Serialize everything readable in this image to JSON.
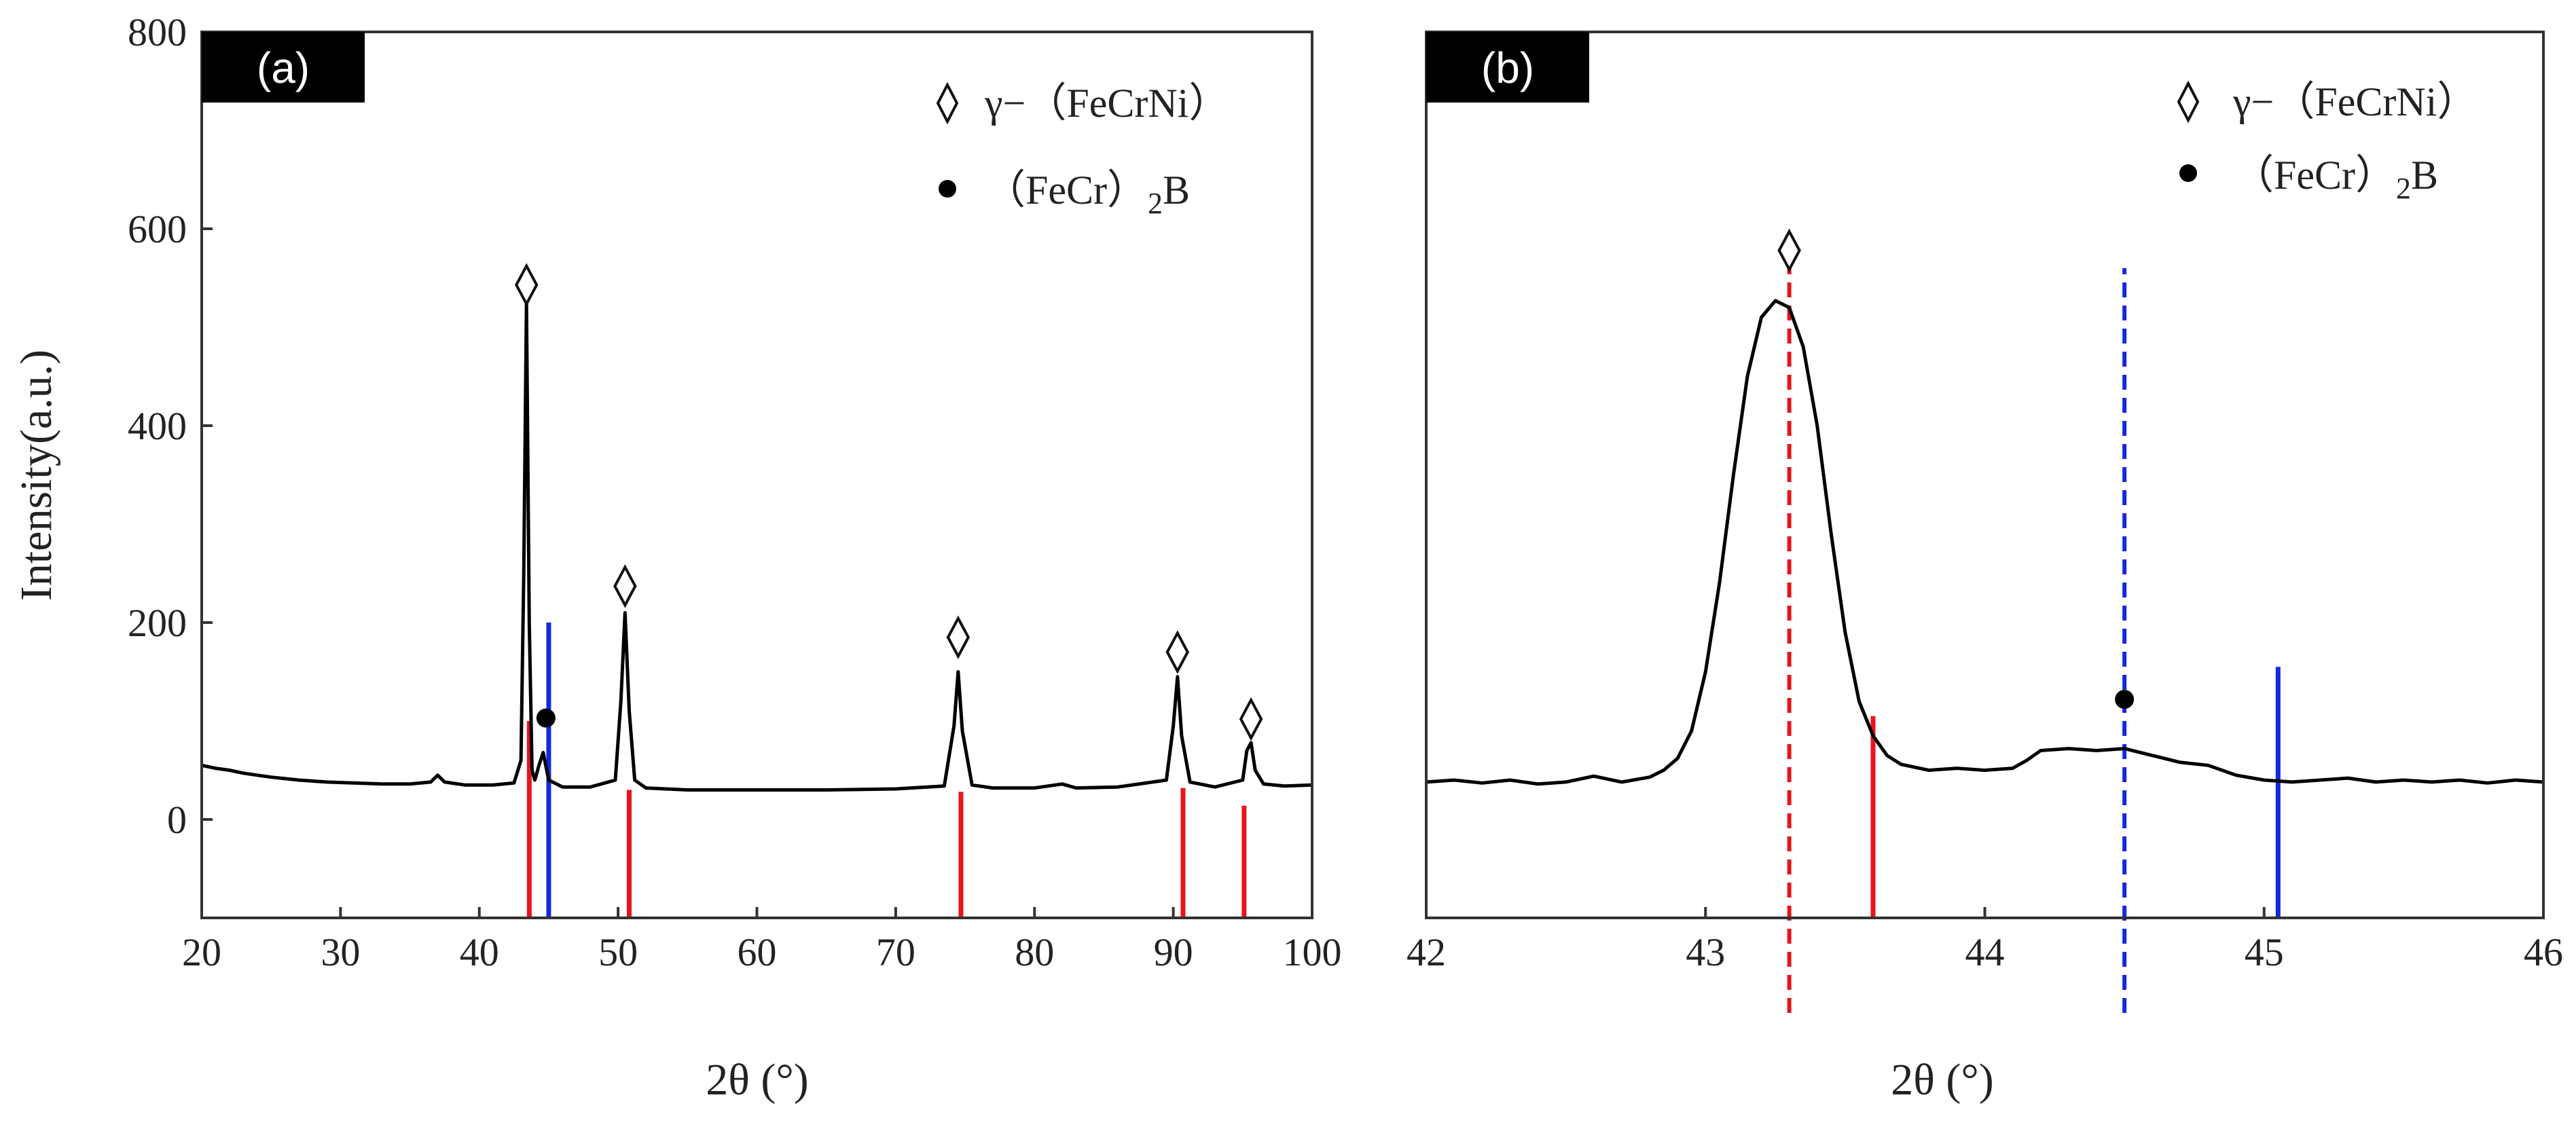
{
  "chart_data": [
    {
      "type": "line",
      "panel_label": "(a)",
      "xlabel": "2θ (°)",
      "ylabel": "Intensity(a.u.)",
      "xlim": [
        20,
        100
      ],
      "ylim": [
        -100,
        800
      ],
      "xticks": [
        20,
        30,
        40,
        50,
        60,
        70,
        80,
        90,
        100
      ],
      "yticks": [
        0,
        200,
        400,
        600,
        800
      ],
      "legend": [
        {
          "marker": "diamond",
          "label": "γ−（FeCrNi）",
          "sub": ""
        },
        {
          "marker": "dot",
          "label": "（FeCr）",
          "sub": "2",
          "suffix": "B"
        }
      ],
      "series": [
        {
          "name": "XRD pattern",
          "color": "#000000",
          "x": [
            20,
            21,
            22,
            23,
            24,
            25,
            27,
            29,
            31,
            33,
            35,
            36.5,
            37,
            37.5,
            39,
            41,
            42.5,
            43.0,
            43.2,
            43.4,
            43.6,
            43.8,
            44.0,
            44.3,
            44.6,
            45.0,
            46,
            48,
            49.8,
            50.2,
            50.5,
            50.8,
            51.2,
            52,
            55,
            60,
            65,
            70,
            73.5,
            74.2,
            74.5,
            74.8,
            75.5,
            77,
            80,
            82,
            83,
            86,
            89.5,
            90.0,
            90.3,
            90.6,
            91.2,
            93,
            95.0,
            95.3,
            95.6,
            95.9,
            96.5,
            98,
            100
          ],
          "y": [
            55,
            52,
            50,
            47,
            45,
            43,
            40,
            38,
            37,
            36,
            36,
            38,
            45,
            38,
            35,
            35,
            37,
            60,
            250,
            525,
            200,
            50,
            40,
            55,
            68,
            40,
            33,
            33,
            40,
            120,
            210,
            110,
            40,
            32,
            30,
            30,
            30,
            31,
            34,
            95,
            150,
            90,
            35,
            32,
            32,
            36,
            32,
            33,
            40,
            95,
            145,
            85,
            38,
            33,
            40,
            70,
            78,
            50,
            36,
            34,
            35
          ]
        }
      ],
      "peak_markers": [
        {
          "x": 43.4,
          "y": 543,
          "marker": "diamond"
        },
        {
          "x": 44.8,
          "y": 103,
          "marker": "dot"
        },
        {
          "x": 50.5,
          "y": 237,
          "marker": "diamond"
        },
        {
          "x": 74.5,
          "y": 185,
          "marker": "diamond"
        },
        {
          "x": 90.3,
          "y": 170,
          "marker": "diamond"
        },
        {
          "x": 95.6,
          "y": 102,
          "marker": "diamond"
        }
      ],
      "reference_lines": [
        {
          "x": 43.6,
          "y_top": 100,
          "color": "#e8141e",
          "style": "solid"
        },
        {
          "x": 50.8,
          "y_top": 30,
          "color": "#e8141e",
          "style": "solid"
        },
        {
          "x": 74.7,
          "y_top": 28,
          "color": "#e8141e",
          "style": "solid"
        },
        {
          "x": 90.7,
          "y_top": 32,
          "color": "#e8141e",
          "style": "solid"
        },
        {
          "x": 95.1,
          "y_top": 14,
          "color": "#e8141e",
          "style": "solid"
        },
        {
          "x": 45.0,
          "y_top": 200,
          "color": "#1428e0",
          "style": "solid"
        }
      ]
    },
    {
      "type": "line",
      "panel_label": "(b)",
      "xlabel": "2θ (°)",
      "ylabel": "",
      "xlim": [
        42,
        46
      ],
      "ylim": [
        -100,
        800
      ],
      "xticks": [
        42,
        43,
        44,
        45,
        46
      ],
      "yticks": [],
      "legend": [
        {
          "marker": "diamond",
          "label": "γ−（FeCrNi）",
          "sub": ""
        },
        {
          "marker": "dot",
          "label": "（FeCr）",
          "sub": "2",
          "suffix": "B"
        }
      ],
      "series": [
        {
          "name": "XRD pattern (zoom)",
          "color": "#000000",
          "x": [
            42.0,
            42.1,
            42.2,
            42.3,
            42.4,
            42.5,
            42.6,
            42.7,
            42.8,
            42.85,
            42.9,
            42.95,
            43.0,
            43.05,
            43.1,
            43.15,
            43.2,
            43.25,
            43.3,
            43.35,
            43.4,
            43.45,
            43.5,
            43.55,
            43.6,
            43.65,
            43.7,
            43.8,
            43.9,
            44.0,
            44.1,
            44.15,
            44.2,
            44.3,
            44.4,
            44.5,
            44.6,
            44.7,
            44.8,
            44.9,
            45.0,
            45.1,
            45.2,
            45.3,
            45.4,
            45.5,
            45.6,
            45.7,
            45.8,
            45.9,
            46.0
          ],
          "y": [
            38,
            40,
            37,
            40,
            36,
            38,
            44,
            38,
            43,
            50,
            62,
            90,
            150,
            240,
            350,
            450,
            510,
            527,
            520,
            480,
            400,
            290,
            190,
            120,
            85,
            65,
            56,
            50,
            52,
            50,
            52,
            60,
            70,
            72,
            70,
            72,
            65,
            58,
            55,
            45,
            40,
            38,
            40,
            42,
            38,
            40,
            38,
            40,
            37,
            40,
            38
          ]
        }
      ],
      "peak_markers": [
        {
          "x": 43.3,
          "y": 578,
          "marker": "diamond"
        },
        {
          "x": 44.5,
          "y": 122,
          "marker": "dot"
        }
      ],
      "reference_lines": [
        {
          "x": 43.3,
          "y_top": 560,
          "color": "#e8141e",
          "style": "dashed"
        },
        {
          "x": 43.6,
          "y_top": 105,
          "color": "#e8141e",
          "style": "solid"
        },
        {
          "x": 44.5,
          "y_top": 560,
          "color": "#1428e0",
          "style": "dashed"
        },
        {
          "x": 45.05,
          "y_top": 155,
          "color": "#1428e0",
          "style": "solid"
        }
      ]
    }
  ]
}
